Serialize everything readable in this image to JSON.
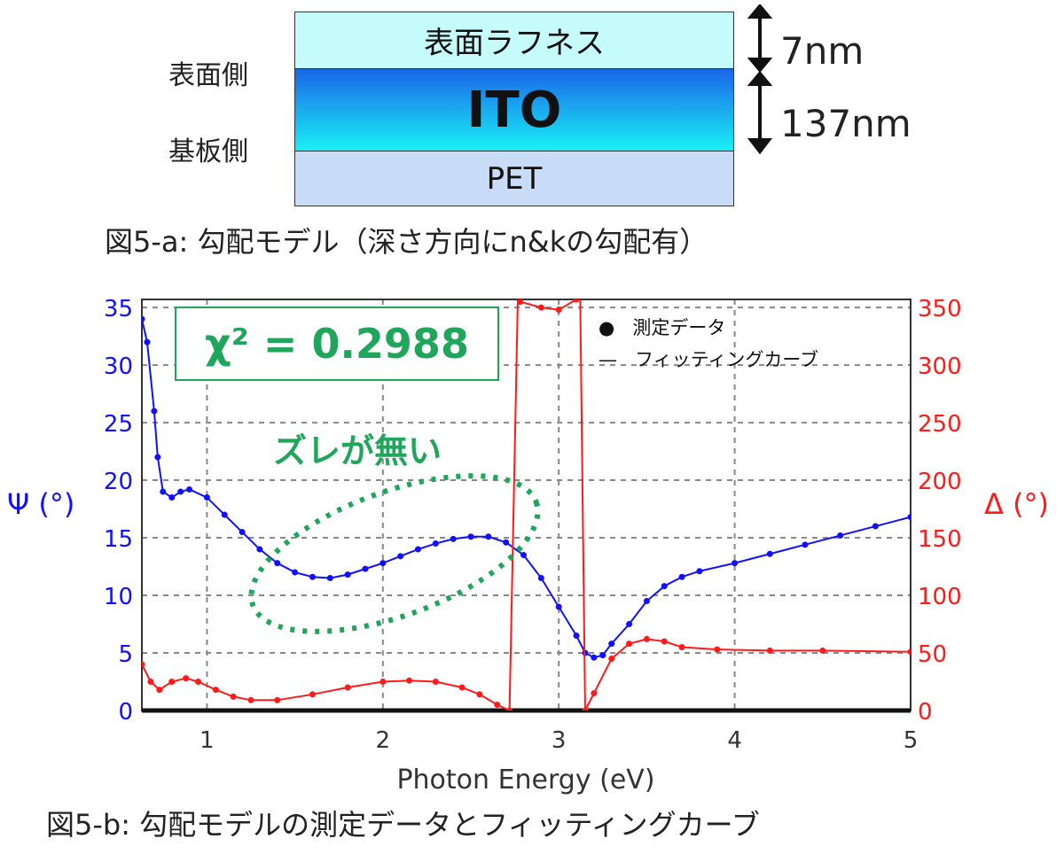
{
  "diagram": {
    "layers": [
      {
        "label": "表面ラフネス",
        "color": "#c6fbfb"
      },
      {
        "label": "ITO",
        "color_top": "#1a66e8",
        "color_bottom": "#19f0f5"
      },
      {
        "label": "PET",
        "color": "#c9dcf7"
      }
    ],
    "side_top": "表面側",
    "side_bottom": "基板側",
    "thickness_roughness": "7nm",
    "thickness_ito": "137nm",
    "caption": "図5-a: 勾配モデル（深さ方向にn&kの勾配有）"
  },
  "chart_data": {
    "type": "line",
    "xlabel": "Photon Energy (eV)",
    "ylabel_left": "Ψ (°)",
    "ylabel_right": "Δ (°)",
    "xlim": [
      0.63,
      5
    ],
    "ylim_left": [
      0,
      35.7
    ],
    "ylim_right": [
      0,
      357
    ],
    "xticks": [
      1,
      2,
      3,
      4,
      5
    ],
    "yticks_left": [
      0,
      5,
      10,
      15,
      20,
      25,
      30,
      35
    ],
    "yticks_right": [
      0,
      50,
      100,
      150,
      200,
      250,
      300,
      350
    ],
    "grid": true,
    "legend": {
      "placement": "top-right",
      "entries": [
        {
          "symbol": "●",
          "label": "測定データ"
        },
        {
          "symbol": "—",
          "label": "フィッティングカーブ"
        }
      ]
    },
    "annotations": {
      "chi2": "χ² = 0.2988",
      "note": "ズレが無い"
    },
    "series": [
      {
        "name": "Ψ",
        "axis": "left",
        "color": "#1010ff",
        "points": [
          [
            0.63,
            34
          ],
          [
            0.66,
            32
          ],
          [
            0.7,
            26
          ],
          [
            0.72,
            22
          ],
          [
            0.75,
            19
          ],
          [
            0.8,
            18.5
          ],
          [
            0.85,
            19
          ],
          [
            0.9,
            19.2
          ],
          [
            1.0,
            18.5
          ],
          [
            1.1,
            17
          ],
          [
            1.2,
            15.5
          ],
          [
            1.3,
            14
          ],
          [
            1.4,
            12.8
          ],
          [
            1.5,
            12
          ],
          [
            1.6,
            11.6
          ],
          [
            1.7,
            11.5
          ],
          [
            1.8,
            11.8
          ],
          [
            1.9,
            12.3
          ],
          [
            2.0,
            12.8
          ],
          [
            2.1,
            13.4
          ],
          [
            2.2,
            14
          ],
          [
            2.3,
            14.5
          ],
          [
            2.4,
            14.9
          ],
          [
            2.5,
            15.1
          ],
          [
            2.6,
            15.1
          ],
          [
            2.7,
            14.6
          ],
          [
            2.8,
            13.5
          ],
          [
            2.9,
            11.5
          ],
          [
            3.0,
            9
          ],
          [
            3.1,
            6.5
          ],
          [
            3.15,
            5
          ],
          [
            3.2,
            4.6
          ],
          [
            3.25,
            4.8
          ],
          [
            3.3,
            5.8
          ],
          [
            3.4,
            7.5
          ],
          [
            3.5,
            9.5
          ],
          [
            3.6,
            10.8
          ],
          [
            3.7,
            11.6
          ],
          [
            3.8,
            12.1
          ],
          [
            4.0,
            12.8
          ],
          [
            4.2,
            13.6
          ],
          [
            4.4,
            14.4
          ],
          [
            4.6,
            15.2
          ],
          [
            4.8,
            16
          ],
          [
            5.0,
            16.8
          ]
        ]
      },
      {
        "name": "Δ",
        "axis": "right",
        "color": "#ff1a1a",
        "points": [
          [
            0.63,
            40
          ],
          [
            0.68,
            25
          ],
          [
            0.73,
            18
          ],
          [
            0.8,
            25
          ],
          [
            0.88,
            28
          ],
          [
            0.95,
            25
          ],
          [
            1.05,
            18
          ],
          [
            1.15,
            12
          ],
          [
            1.25,
            9
          ],
          [
            1.4,
            9
          ],
          [
            1.6,
            14
          ],
          [
            1.8,
            20
          ],
          [
            2.0,
            25
          ],
          [
            2.15,
            26
          ],
          [
            2.3,
            25
          ],
          [
            2.45,
            20
          ],
          [
            2.55,
            14
          ],
          [
            2.65,
            5
          ],
          [
            2.72,
            0
          ],
          [
            2.77,
            380
          ],
          [
            2.78,
            355
          ],
          [
            2.9,
            350
          ],
          [
            3.0,
            348
          ],
          [
            3.1,
            357
          ],
          [
            3.12,
            380
          ],
          [
            3.15,
            0
          ],
          [
            3.2,
            15
          ],
          [
            3.3,
            45
          ],
          [
            3.4,
            58
          ],
          [
            3.5,
            62
          ],
          [
            3.6,
            60
          ],
          [
            3.7,
            55
          ],
          [
            3.9,
            53
          ],
          [
            4.2,
            52
          ],
          [
            4.5,
            52
          ],
          [
            5.0,
            51
          ]
        ]
      }
    ]
  },
  "chart_caption": "図5-b: 勾配モデルの測定データとフィッティングカーブ"
}
